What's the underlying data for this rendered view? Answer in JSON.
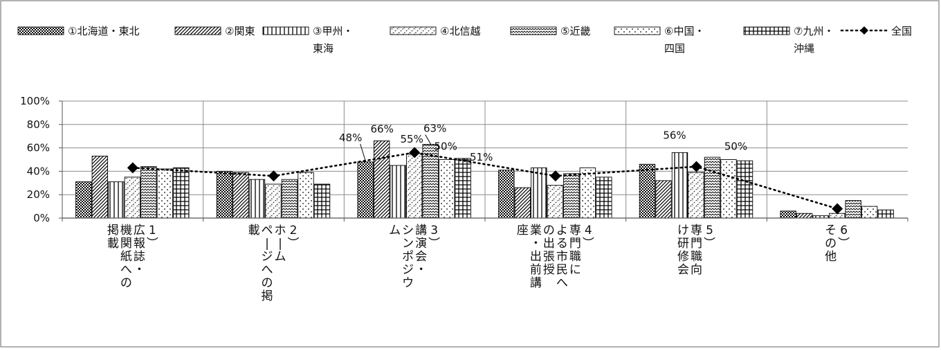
{
  "chart_data": {
    "type": "bar",
    "categories": [
      "1)広報誌・機関紙への掲載",
      "2)ホームページへの掲載",
      "3)講演会・シンポジウム",
      "4)専門職による市民への出張授業・出前講座",
      "5)専門職向け研修会",
      "6)その他"
    ],
    "category_label_columns": [
      [
        "1)",
        "広報誌・",
        "機関紙への",
        "掲載"
      ],
      [
        "2)",
        "ホーム",
        "ページへの掲",
        "載"
      ],
      [
        "3)",
        "講演会・",
        "シンポジウ",
        "ム"
      ],
      [
        "4)",
        "専門職に",
        "よる市民へ",
        "の出張授",
        "業・出前講",
        "座"
      ],
      [
        "5)",
        "専門職向",
        "け研修会"
      ],
      [
        "6)",
        "その他"
      ]
    ],
    "series": [
      {
        "name": "①北海道・東北",
        "values": [
          31,
          40,
          48,
          41,
          46,
          6
        ]
      },
      {
        "name": "②関東",
        "values": [
          53,
          39,
          66,
          26,
          32,
          4
        ]
      },
      {
        "name": "③甲州・東海",
        "values": [
          31,
          33,
          45,
          43,
          56,
          2
        ]
      },
      {
        "name": "④北信越",
        "values": [
          35,
          29,
          55,
          28,
          39,
          4
        ]
      },
      {
        "name": "⑤近畿",
        "values": [
          44,
          33,
          63,
          38,
          52,
          15
        ]
      },
      {
        "name": "⑥中国・四国",
        "values": [
          42,
          39,
          50,
          43,
          50,
          10
        ]
      },
      {
        "name": "⑦九州・沖縄",
        "values": [
          43,
          29,
          51,
          35,
          49,
          7
        ]
      }
    ],
    "line_series": {
      "name": "全国",
      "values": [
        43,
        36,
        56,
        36,
        44,
        8
      ]
    },
    "legend_labels": [
      [
        "①北海道・東北"
      ],
      [
        "②関東"
      ],
      [
        "③甲州・",
        "東海"
      ],
      [
        "④北信越"
      ],
      [
        "⑤近畿"
      ],
      [
        "⑥中国・",
        "四国"
      ],
      [
        "⑦九州・",
        "沖縄"
      ],
      [
        "全国"
      ]
    ],
    "data_labels": [
      {
        "category": 2,
        "series": 0,
        "text": "48%"
      },
      {
        "category": 2,
        "series": 1,
        "text": "66%"
      },
      {
        "category": 2,
        "series": 3,
        "text": "55%"
      },
      {
        "category": 2,
        "series": 4,
        "text": "63%"
      },
      {
        "category": 2,
        "series": 5,
        "text": "50%"
      },
      {
        "category": 2,
        "series": 6,
        "text": "51%"
      },
      {
        "category": 4,
        "series": 2,
        "text": "56%"
      },
      {
        "category": 4,
        "series": 5,
        "text": "50%"
      }
    ],
    "ylim": [
      0,
      100
    ],
    "yticks": [
      0,
      20,
      40,
      60,
      80,
      100
    ],
    "ytick_labels": [
      "0%",
      "20%",
      "40%",
      "60%",
      "80%",
      "100%"
    ],
    "grid": true,
    "legend_position": "top",
    "title": "",
    "xlabel": "",
    "ylabel": "",
    "colors": {
      "bar_edge": "#000000",
      "grid": "#8c8c8c",
      "line": "#000000",
      "frame": "#7f7f7f"
    }
  }
}
